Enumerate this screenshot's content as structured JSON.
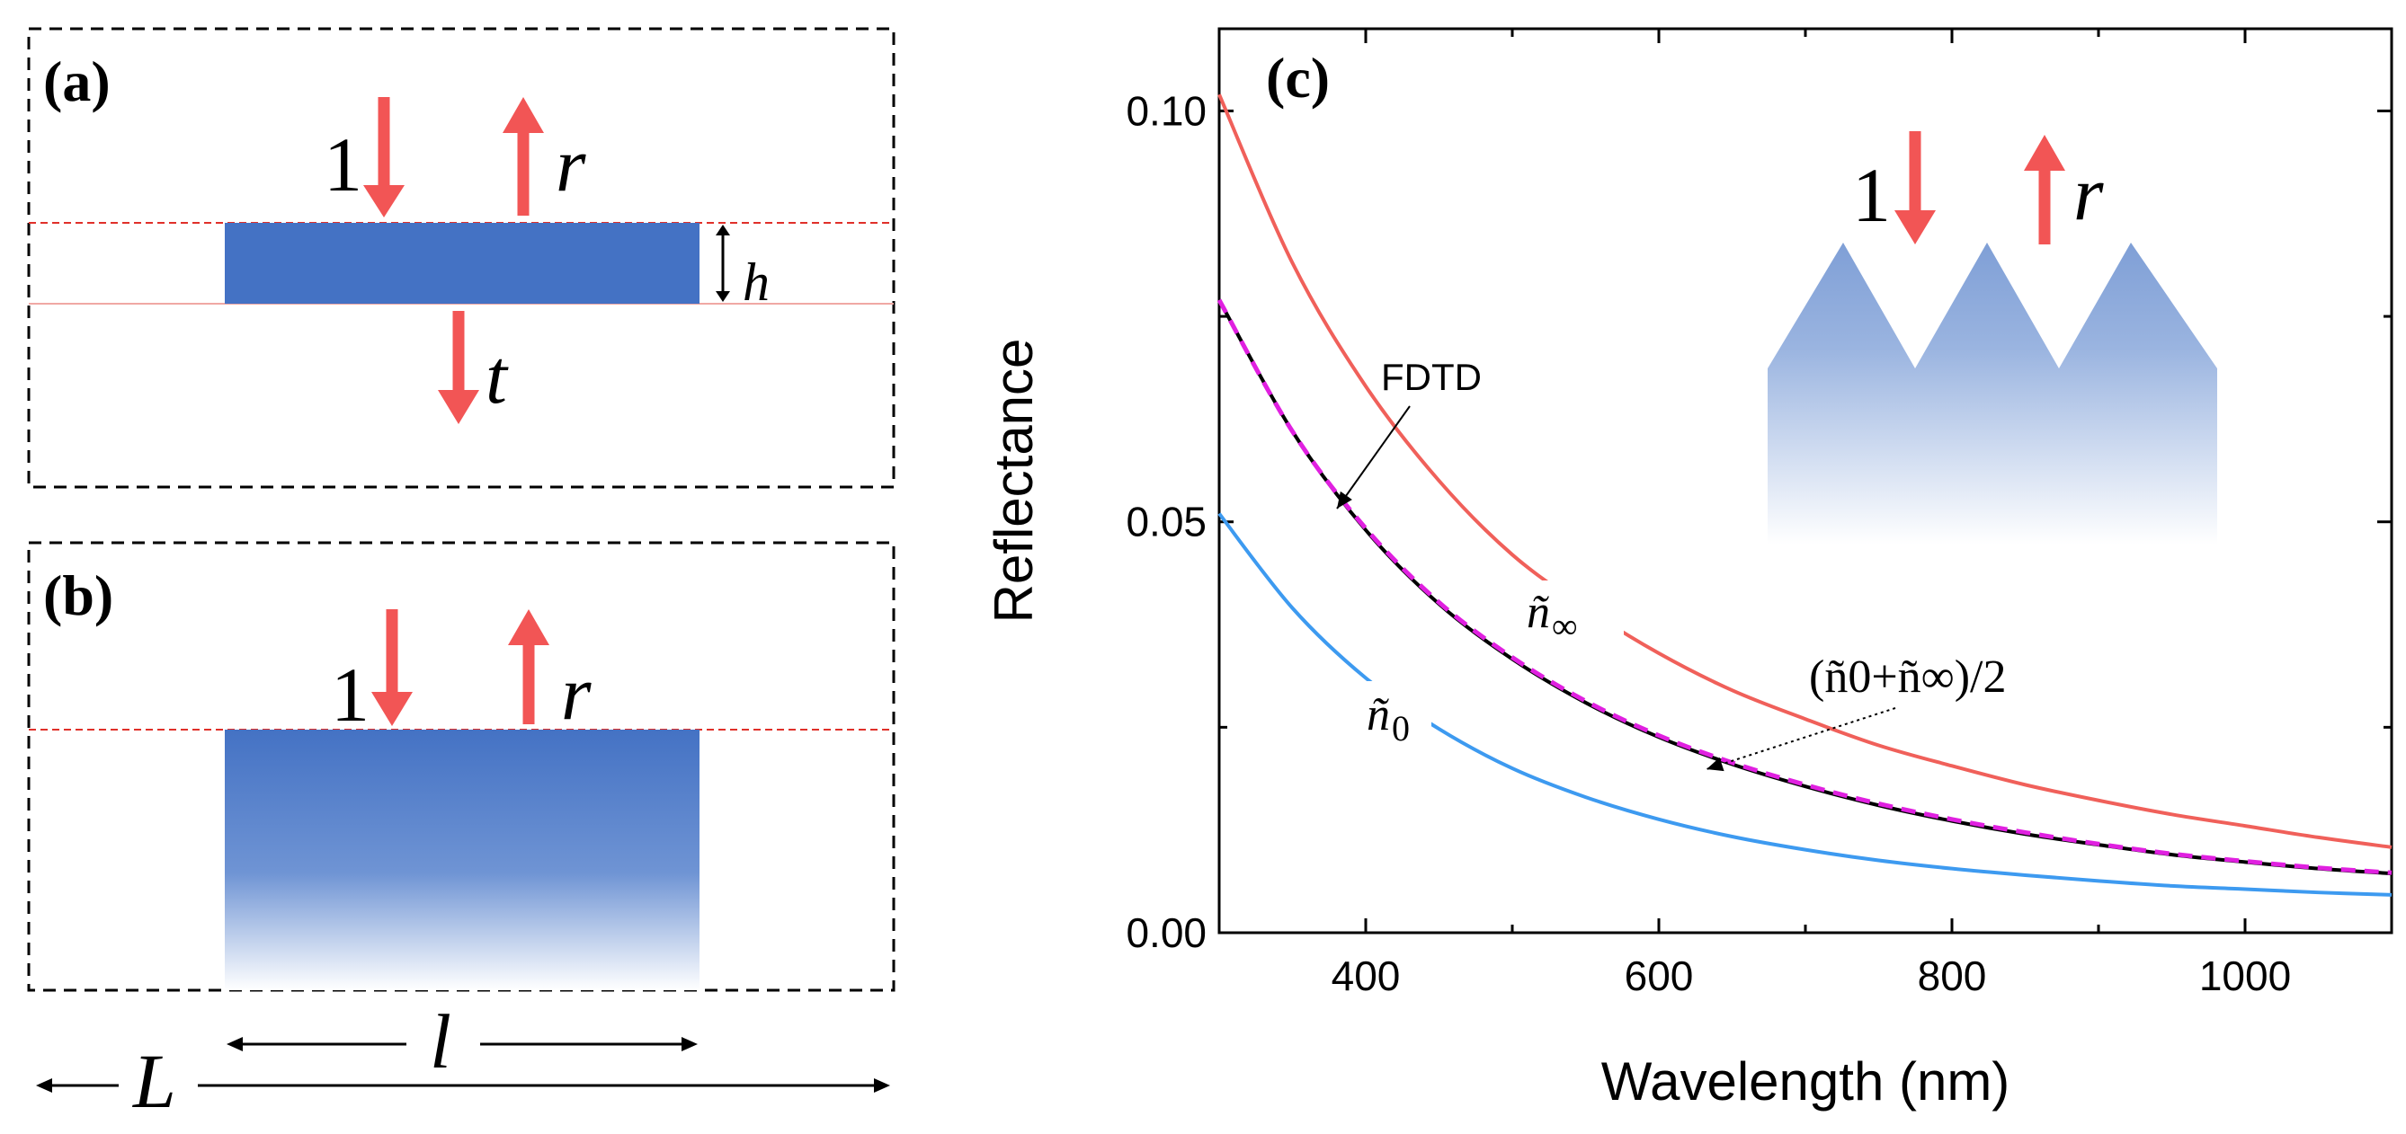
{
  "colors": {
    "arrow_red": "#f25555",
    "guide_red": "#e0302a",
    "slab_blue": "#4472c4",
    "curve_ninf": "#f0605a",
    "curve_n0": "#3d9af0",
    "curve_fdtd": "#000000",
    "curve_avg": "#e020e0"
  },
  "panel_a": {
    "label": "(a)",
    "one": "1",
    "r": "r",
    "t": "t",
    "h": "h"
  },
  "panel_b": {
    "label": "(b)",
    "one": "1",
    "r": "r"
  },
  "dimensions": {
    "L": "L",
    "l": "l"
  },
  "panel_c": {
    "label": "(c)",
    "inset_one": "1",
    "inset_r": "r"
  },
  "chart_data": {
    "type": "line",
    "title": "",
    "xlabel": "Wavelength (nm)",
    "ylabel": "Reflectance",
    "xlim": [
      300,
      1100
    ],
    "ylim": [
      0,
      0.11
    ],
    "xticks": [
      400,
      600,
      800,
      1000
    ],
    "xtick_labels": [
      "400",
      "600",
      "800",
      "1000"
    ],
    "yticks": [
      0.0,
      0.05,
      0.1
    ],
    "ytick_labels": [
      "0.00",
      "0.05",
      "0.10"
    ],
    "series": [
      {
        "name": "ñ∞",
        "label_base": "ñ",
        "label_sub": "∞",
        "color": "#f0605a",
        "dashed": false,
        "x": [
          300,
          350,
          400,
          450,
          500,
          550,
          600,
          650,
          700,
          750,
          800,
          850,
          900,
          950,
          1000,
          1050,
          1100
        ],
        "y": [
          0.102,
          0.0815,
          0.0665,
          0.055,
          0.046,
          0.0395,
          0.034,
          0.0295,
          0.026,
          0.0228,
          0.0203,
          0.018,
          0.0161,
          0.0144,
          0.013,
          0.0116,
          0.0104
        ]
      },
      {
        "name": "FDTD",
        "label_base": "FDTD",
        "label_sub": "",
        "color": "#000000",
        "dashed": false,
        "x": [
          300,
          350,
          400,
          450,
          500,
          550,
          600,
          650,
          700,
          750,
          800,
          850,
          900,
          950,
          1000,
          1050,
          1100
        ],
        "y": [
          0.077,
          0.061,
          0.049,
          0.04,
          0.0333,
          0.028,
          0.0238,
          0.0205,
          0.0178,
          0.0155,
          0.0136,
          0.012,
          0.0107,
          0.0095,
          0.0086,
          0.0078,
          0.0072
        ]
      },
      {
        "name": "(ñ0+ñ∞)/2",
        "label_base": "(ñ0+ñ∞)/2",
        "label_sub": "",
        "color": "#e020e0",
        "dashed": true,
        "x": [
          300,
          350,
          400,
          450,
          500,
          550,
          600,
          650,
          700,
          750,
          800,
          850,
          900,
          950,
          1000,
          1050,
          1100
        ],
        "y": [
          0.077,
          0.061,
          0.0492,
          0.0402,
          0.0335,
          0.0282,
          0.024,
          0.0207,
          0.018,
          0.0157,
          0.0138,
          0.0122,
          0.0108,
          0.0096,
          0.0087,
          0.0079,
          0.0073
        ]
      },
      {
        "name": "ñ0",
        "label_base": "ñ",
        "label_sub": "0",
        "color": "#3d9af0",
        "dashed": false,
        "x": [
          300,
          350,
          400,
          450,
          500,
          550,
          600,
          650,
          700,
          750,
          800,
          850,
          900,
          950,
          1000,
          1050,
          1100
        ],
        "y": [
          0.051,
          0.0395,
          0.031,
          0.0248,
          0.02,
          0.0165,
          0.0138,
          0.0117,
          0.0101,
          0.0088,
          0.0078,
          0.007,
          0.0063,
          0.0057,
          0.0053,
          0.0049,
          0.0046
        ]
      }
    ]
  }
}
